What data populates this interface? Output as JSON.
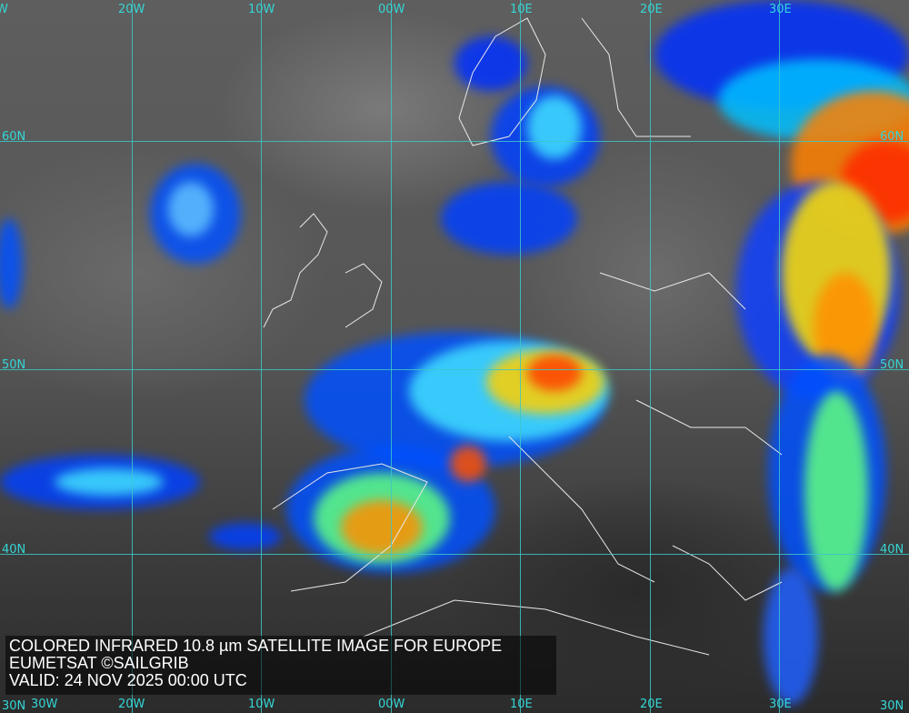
{
  "caption": {
    "title": "COLORED INFRARED 10.8 µm SATELLITE IMAGE FOR EUROPE",
    "source": "EUMETSAT ©SAILGRIB",
    "valid": "VALID:  24 NOV 2025 00:00 UTC"
  },
  "grid": {
    "longitudes_top": [
      "W",
      "20W",
      "10W",
      "00W",
      "10E",
      "20E",
      "30E"
    ],
    "longitudes_bottom": [
      "30W",
      "20W",
      "10W",
      "00W",
      "10E",
      "20E",
      "30E"
    ],
    "latitudes_left": [
      "60N",
      "50N",
      "40N",
      "30N"
    ],
    "latitudes_right": [
      "60N",
      "50N",
      "40N",
      "30N"
    ]
  },
  "colors": {
    "grid": "#3cc7c7",
    "cold_top": "#ff2a00",
    "warm_cloud": "#0020e0",
    "mid_cloud": "#ffff00"
  }
}
